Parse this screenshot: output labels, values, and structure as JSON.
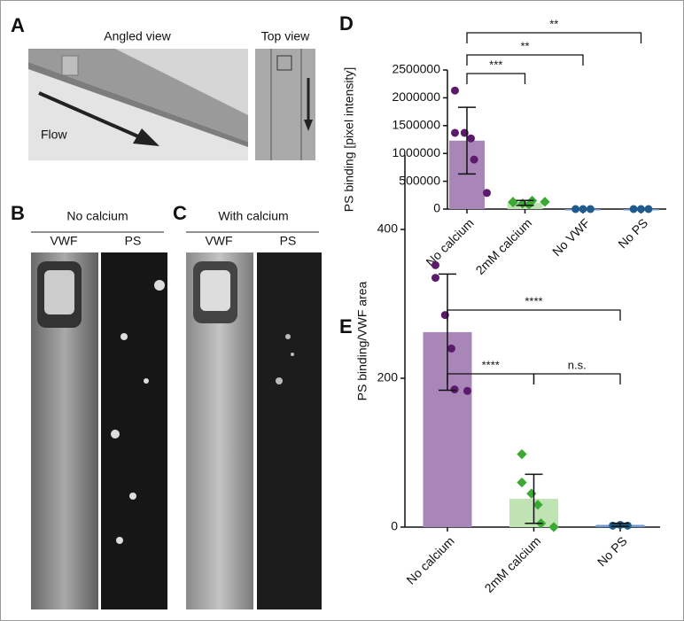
{
  "panels": {
    "A": {
      "letter": "A",
      "angled": "Angled view",
      "top": "Top view",
      "flow": "Flow"
    },
    "B": {
      "letter": "B",
      "title": "No calcium",
      "left": "VWF",
      "right": "PS"
    },
    "C": {
      "letter": "C",
      "title": "With calcium",
      "left": "VWF",
      "right": "PS"
    }
  },
  "chart_data": [
    {
      "type": "bar",
      "letter": "D",
      "ylabel": "PS binding [pixel intensity]",
      "categories": [
        "No calcium",
        "2mM calcium",
        "No VWF",
        "No PS"
      ],
      "values": [
        1230000,
        110000,
        0,
        0
      ],
      "errors": [
        600000,
        45000,
        0,
        0
      ],
      "points": [
        [
          2130000,
          1370000,
          1370000,
          1270000,
          890000,
          290000
        ],
        [
          130000,
          120000,
          100000,
          80000,
          150000,
          130000
        ],
        [
          0,
          0,
          0
        ],
        [
          0,
          0,
          0
        ]
      ],
      "colors": [
        "#a886b8",
        "#bfe3b2",
        "#6d9bd0",
        "#6d9bd0"
      ],
      "point_colors": [
        "#5b1a6b",
        "#3aaa35",
        "#1f5a8c",
        "#1f5a8c"
      ],
      "ylim": [
        0,
        2500000
      ],
      "yticks": [
        0,
        500000,
        1000000,
        1500000,
        2000000,
        2500000
      ],
      "annotations": [
        "***",
        "**",
        "**"
      ]
    },
    {
      "type": "bar",
      "letter": "E",
      "ylabel": "PS binding/VWF area",
      "categories": [
        "No calcium",
        "2mM calcium",
        "No PS"
      ],
      "values": [
        262,
        38,
        3
      ],
      "errors": [
        78,
        33,
        2
      ],
      "points": [
        [
          352,
          335,
          285,
          240,
          185,
          183
        ],
        [
          98,
          60,
          45,
          30,
          5,
          0
        ],
        [
          2,
          3,
          2
        ]
      ],
      "colors": [
        "#a886b8",
        "#bfe3b2",
        "#6d9bd0"
      ],
      "point_colors": [
        "#5b1a6b",
        "#3aaa35",
        "#1f5a8c"
      ],
      "ylim": [
        0,
        500
      ],
      "yticks": [
        0,
        200,
        400
      ],
      "annotations": [
        "****",
        "n.s.",
        "****"
      ]
    }
  ]
}
